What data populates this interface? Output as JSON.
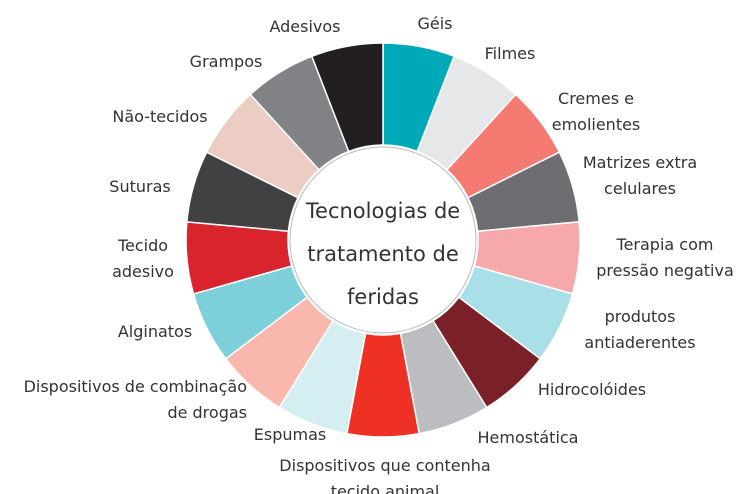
{
  "center": [
    "Tecnologias de",
    "tratamento de",
    "feridas"
  ],
  "nodes": [
    {
      "label": [
        "Géis"
      ],
      "color": "#00a9b7"
    },
    {
      "label": [
        "Filmes"
      ],
      "color": "#e6e7e8"
    },
    {
      "label": [
        "Cremes e",
        "emolientes"
      ],
      "color": "#f47a72"
    },
    {
      "label": [
        "Matrizes extra",
        "celulares"
      ],
      "color": "#6d6e71"
    },
    {
      "label": [
        "Terapia com",
        "pressão negativa"
      ],
      "color": "#f7a8ab"
    },
    {
      "label": [
        "produtos",
        "antiaderentes"
      ],
      "color": "#a9dfe6"
    },
    {
      "label": [
        "Hidrocolóides"
      ],
      "color": "#7a2026"
    },
    {
      "label": [
        "Hemostática"
      ],
      "color": "#bcbdc0"
    },
    {
      "label": [
        "Dispositivos que contenha",
        "tecido animal"
      ],
      "color": "#ee3124"
    },
    {
      "label": [
        "Espumas"
      ],
      "color": "#d4eef2"
    },
    {
      "label": [
        "Dispositivos de combinação",
        "de drogas"
      ],
      "color": "#f9b7ae"
    },
    {
      "label": [
        "Alginatos"
      ],
      "color": "#7dd0da"
    },
    {
      "label": [
        "Tecido",
        "adesivo"
      ],
      "color": "#d9232d"
    },
    {
      "label": [
        "Suturas"
      ],
      "color": "#414042"
    },
    {
      "label": [
        "Não-tecidos"
      ],
      "color": "#eccdc4"
    },
    {
      "label": [
        "Grampos"
      ],
      "color": "#808285"
    },
    {
      "label": [
        "Adesivos"
      ],
      "color": "#231f20"
    }
  ]
}
